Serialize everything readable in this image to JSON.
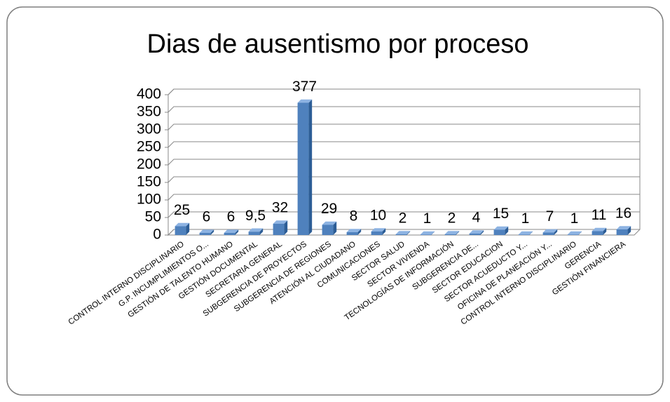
{
  "chart_data": {
    "type": "bar",
    "title": "Dias de ausentismo por proceso",
    "categories": [
      "CONTROL INTERNO DISCIPLINARIO",
      "G.P. INCUMPLIMIENTOS O...",
      "GESTIÓN DE TALENTO HUMANO",
      "GESTIÓN DOCUMENTAL",
      "SECRETARIA GENERAL",
      "SUBGERENCIA DE PROYECTOS",
      "SUBGERENCIA DE REGIONES",
      "ATENCIÓN AL CIUDADANO",
      "COMUNICACIONES",
      "SECTOR SALUD",
      "SECTOR VIVIENDA",
      "TECNOLOGÍAS DE INFORMACIÓN",
      "SUBGERENCIA DE...",
      "SECTOR EDUCACION",
      "SECTOR ACUEDUCTO Y...",
      "OFICINA DE PLANEACIÓN Y...",
      "CONTROL INTERNO DISCIPLINARIO",
      "GERENCIA",
      "GESTIÓN FINANCIERA"
    ],
    "values": [
      25,
      6,
      6,
      9.5,
      32,
      377,
      29,
      8,
      10,
      2,
      1,
      2,
      4,
      15,
      1,
      7,
      1,
      11,
      16
    ],
    "value_labels": [
      "25",
      "6",
      "6",
      "9,5",
      "32",
      "377",
      "29",
      "8",
      "10",
      "2",
      "1",
      "2",
      "4",
      "15",
      "1",
      "7",
      "1",
      "11",
      "16"
    ],
    "color": "#4f81bd",
    "ylim": [
      0,
      400
    ],
    "yticks": [
      0,
      50,
      100,
      150,
      200,
      250,
      300,
      350,
      400
    ],
    "grid": true
  }
}
